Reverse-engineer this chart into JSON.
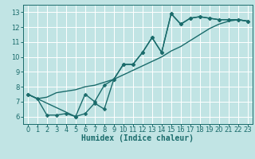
{
  "title": "",
  "xlabel": "Humidex (Indice chaleur)",
  "xlim": [
    -0.5,
    23.5
  ],
  "ylim": [
    5.5,
    13.5
  ],
  "background_color": "#c1e4e4",
  "grid_color": "#ffffff",
  "line_color": "#1a6b6b",
  "xticks": [
    0,
    1,
    2,
    3,
    4,
    5,
    6,
    7,
    8,
    9,
    10,
    11,
    12,
    13,
    14,
    15,
    16,
    17,
    18,
    19,
    20,
    21,
    22,
    23
  ],
  "yticks": [
    6,
    7,
    8,
    9,
    10,
    11,
    12,
    13
  ],
  "line1_x": [
    0,
    1,
    2,
    3,
    4,
    5,
    6,
    7,
    8,
    9,
    10,
    11,
    12,
    13,
    14,
    15,
    16,
    17,
    18,
    19,
    20,
    21,
    22,
    23
  ],
  "line1_y": [
    7.5,
    7.2,
    6.1,
    6.1,
    6.2,
    6.0,
    6.2,
    6.9,
    6.5,
    8.5,
    9.5,
    9.5,
    10.3,
    11.3,
    10.3,
    12.9,
    12.2,
    12.6,
    12.7,
    12.6,
    12.5,
    12.5,
    12.5,
    12.4
  ],
  "line2_x": [
    0,
    1,
    2,
    3,
    4,
    5,
    6,
    7,
    8,
    9,
    10,
    11,
    12,
    13,
    14,
    15,
    16,
    17,
    18,
    19,
    20,
    21,
    22,
    23
  ],
  "line2_y": [
    7.5,
    7.2,
    7.3,
    7.6,
    7.7,
    7.8,
    8.0,
    8.1,
    8.3,
    8.5,
    8.8,
    9.1,
    9.4,
    9.7,
    10.0,
    10.4,
    10.7,
    11.1,
    11.5,
    11.9,
    12.2,
    12.4,
    12.5,
    12.4
  ],
  "line3_x": [
    0,
    5,
    6,
    7,
    8,
    9,
    10,
    11,
    12,
    13,
    14,
    15,
    16,
    17,
    18,
    19,
    20,
    21,
    22,
    23
  ],
  "line3_y": [
    7.5,
    6.0,
    7.5,
    7.0,
    8.1,
    8.5,
    9.5,
    9.5,
    10.3,
    11.3,
    10.3,
    12.9,
    12.2,
    12.6,
    12.7,
    12.6,
    12.5,
    12.5,
    12.5,
    12.4
  ],
  "marker_size": 2.5,
  "line_width": 1.0,
  "xlabel_fontsize": 7,
  "tick_fontsize": 6
}
